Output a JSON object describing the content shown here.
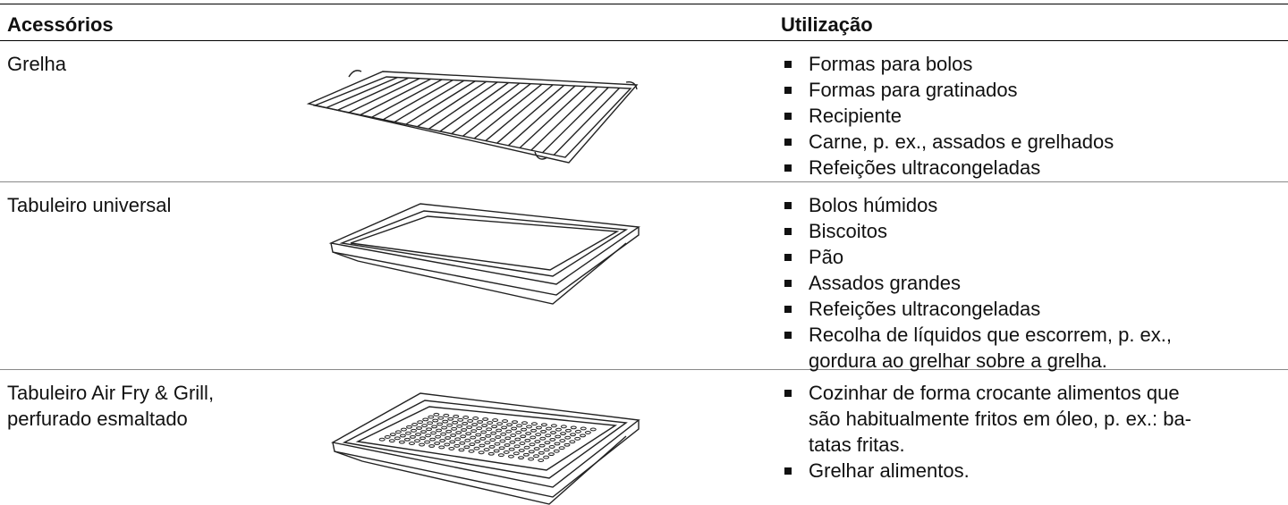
{
  "header": {
    "columns": [
      "Acessórios",
      "Utilização"
    ]
  },
  "rows": [
    {
      "name": [
        "Grelha"
      ],
      "uses": [
        [
          "Formas para bolos"
        ],
        [
          "Formas para gratinados"
        ],
        [
          "Recipiente"
        ],
        [
          "Carne, p. ex., assados e grelhados"
        ],
        [
          "Refeições ultracongeladas"
        ]
      ]
    },
    {
      "name": [
        "Tabuleiro universal"
      ],
      "uses": [
        [
          "Bolos húmidos"
        ],
        [
          "Biscoitos"
        ],
        [
          "Pão"
        ],
        [
          "Assados grandes"
        ],
        [
          "Refeições ultracongeladas"
        ],
        [
          "Recolha de líquidos que escorrem, p. ex.,",
          "gordura ao grelhar sobre a grelha."
        ]
      ]
    },
    {
      "name": [
        "Tabuleiro Air Fry & Grill,",
        "perfurado esmaltado"
      ],
      "uses": [
        [
          "Cozinhar de forma crocante alimentos que",
          "são habitualmente fritos em óleo, p. ex.: ba-",
          "tatas fritas."
        ],
        [
          "Grelhar alimentos."
        ]
      ]
    }
  ]
}
